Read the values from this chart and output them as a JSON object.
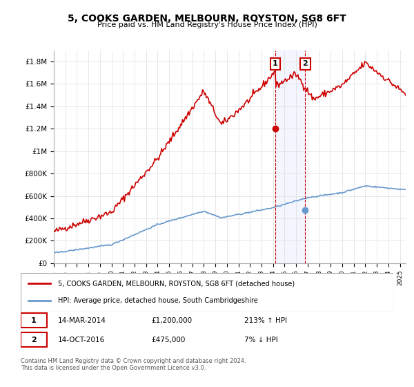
{
  "title": "5, COOKS GARDEN, MELBOURN, ROYSTON, SG8 6FT",
  "subtitle": "Price paid vs. HM Land Registry's House Price Index (HPI)",
  "legend_line1": "5, COOKS GARDEN, MELBOURN, ROYSTON, SG8 6FT (detached house)",
  "legend_line2": "HPI: Average price, detached house, South Cambridgeshire",
  "transaction1_label": "1",
  "transaction1_date": "14-MAR-2014",
  "transaction1_price": "£1,200,000",
  "transaction1_hpi": "213% ↑ HPI",
  "transaction1_year": 2014.2,
  "transaction1_value": 1200000,
  "transaction2_label": "2",
  "transaction2_date": "14-OCT-2016",
  "transaction2_price": "£475,000",
  "transaction2_hpi": "7% ↓ HPI",
  "transaction2_year": 2016.79,
  "transaction2_value": 475000,
  "footer": "Contains HM Land Registry data © Crown copyright and database right 2024.\nThis data is licensed under the Open Government Licence v3.0.",
  "red_line_color": "#cc0000",
  "blue_line_color": "#6699cc",
  "marker_fill": "#cce0ff",
  "ylim": [
    0,
    1900000
  ],
  "xlim_start": 1995.0,
  "xlim_end": 2025.5,
  "yticks": [
    0,
    200000,
    400000,
    600000,
    800000,
    1000000,
    1200000,
    1400000,
    1600000,
    1800000
  ],
  "ytick_labels": [
    "£0",
    "£200K",
    "£400K",
    "£600K",
    "£800K",
    "£1M",
    "£1.2M",
    "£1.4M",
    "£1.6M",
    "£1.8M"
  ],
  "xticks": [
    1995,
    1996,
    1997,
    1998,
    1999,
    2000,
    2001,
    2002,
    2003,
    2004,
    2005,
    2006,
    2007,
    2008,
    2009,
    2010,
    2011,
    2012,
    2013,
    2014,
    2015,
    2016,
    2017,
    2018,
    2019,
    2020,
    2021,
    2022,
    2023,
    2024,
    2025
  ],
  "background_color": "#ffffff",
  "grid_color": "#dddddd"
}
